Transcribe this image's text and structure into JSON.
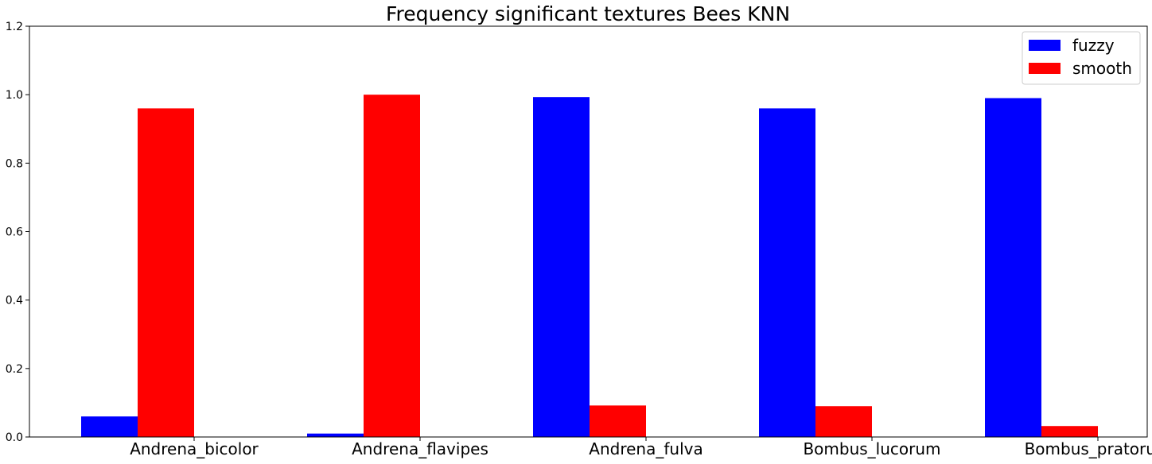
{
  "chart_data": {
    "type": "bar",
    "title": "Frequency significant textures Bees KNN",
    "xlabel": "",
    "ylabel": "",
    "categories": [
      "Andrena_bicolor",
      "Andrena_flavipes",
      "Andrena_fulva",
      "Bombus_lucorum",
      "Bombus_pratorum"
    ],
    "series": [
      {
        "name": "fuzzy",
        "color": "#0000ff",
        "values": [
          0.06,
          0.01,
          0.993,
          0.96,
          0.99
        ]
      },
      {
        "name": "smooth",
        "color": "#ff0000",
        "values": [
          0.96,
          1.0,
          0.092,
          0.09,
          0.032
        ]
      }
    ],
    "ylim": [
      0,
      1.2
    ],
    "yticks": [
      "0.0",
      "0.2",
      "0.4",
      "0.6",
      "0.8",
      "1.0",
      "1.2"
    ],
    "grid": false,
    "legend_position": "top-right"
  }
}
